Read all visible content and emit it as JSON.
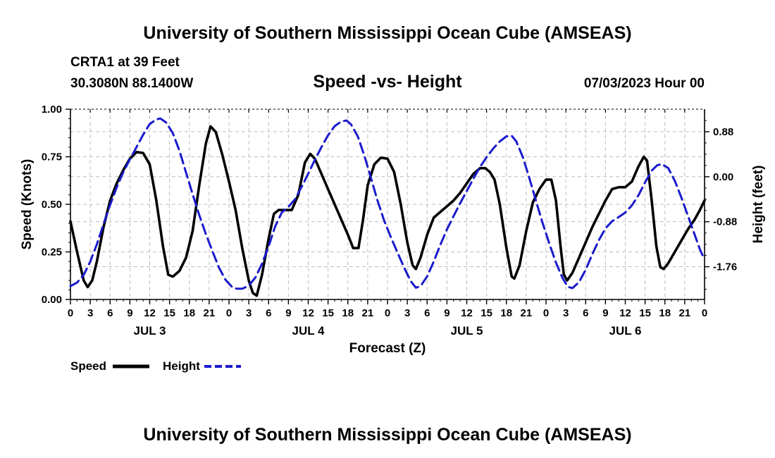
{
  "chart_data": {
    "type": "line",
    "title": "University of Southern Mississippi Ocean Cube (AMSEAS)",
    "footer_title": "University of Southern Mississippi Ocean Cube (AMSEAS)",
    "station": "CRTA1 at 39 Feet",
    "location": "30.3080N  88.1400W",
    "subtitle": "Speed -vs- Height",
    "datetime": "07/03/2023 Hour 00",
    "xlabel": "Forecast (Z)",
    "ylabel_left": "Speed (Knots)",
    "ylabel_right": "Height (feet)",
    "x_range_hours": [
      0,
      96
    ],
    "x_tick_labels": [
      "0",
      "3",
      "6",
      "9",
      "12",
      "15",
      "18",
      "21",
      "0",
      "3",
      "6",
      "9",
      "12",
      "15",
      "18",
      "21",
      "0",
      "3",
      "6",
      "9",
      "12",
      "15",
      "18",
      "21",
      "0",
      "3",
      "6",
      "9",
      "12",
      "15",
      "18",
      "21",
      "0"
    ],
    "day_labels": [
      {
        "label": "JUL 3",
        "hour": 12
      },
      {
        "label": "JUL 4",
        "hour": 36
      },
      {
        "label": "JUL 5",
        "hour": 60
      },
      {
        "label": "JUL 6",
        "hour": 84
      }
    ],
    "y_left": {
      "min": 0,
      "max": 1.0,
      "ticks": [
        "0.00",
        "0.25",
        "0.50",
        "0.75",
        "1.00"
      ],
      "tick_values": [
        0,
        0.25,
        0.5,
        0.75,
        1.0
      ]
    },
    "y_right": {
      "min": -2.4,
      "max": 1.32,
      "ticks": [
        "0.88",
        "0.00",
        "-0.88",
        "-1.76"
      ],
      "tick_values": [
        0.88,
        0.0,
        -0.88,
        -1.76
      ]
    },
    "grid": true,
    "legend": {
      "position": "bottom-left",
      "items": [
        {
          "name": "Speed",
          "color": "#000000",
          "dash": "solid"
        },
        {
          "name": "Height",
          "color": "#1a1acc",
          "dash": "dashed"
        }
      ]
    },
    "series": [
      {
        "name": "Speed",
        "axis": "left",
        "color": "#000000",
        "points": [
          [
            0,
            0.41
          ],
          [
            1,
            0.25
          ],
          [
            2,
            0.1
          ],
          [
            2.6,
            0.065
          ],
          [
            3.3,
            0.1
          ],
          [
            4,
            0.2
          ],
          [
            5,
            0.38
          ],
          [
            6,
            0.52
          ],
          [
            7,
            0.61
          ],
          [
            8,
            0.68
          ],
          [
            9,
            0.74
          ],
          [
            10,
            0.775
          ],
          [
            11,
            0.77
          ],
          [
            12,
            0.71
          ],
          [
            13,
            0.52
          ],
          [
            14,
            0.28
          ],
          [
            14.8,
            0.13
          ],
          [
            15.5,
            0.12
          ],
          [
            16.5,
            0.15
          ],
          [
            17.5,
            0.22
          ],
          [
            18.5,
            0.36
          ],
          [
            19.5,
            0.6
          ],
          [
            20.5,
            0.82
          ],
          [
            21.2,
            0.91
          ],
          [
            22,
            0.88
          ],
          [
            23,
            0.76
          ],
          [
            24,
            0.62
          ],
          [
            25,
            0.47
          ],
          [
            26,
            0.27
          ],
          [
            27,
            0.1
          ],
          [
            27.6,
            0.035
          ],
          [
            28.2,
            0.02
          ],
          [
            29,
            0.13
          ],
          [
            30,
            0.32
          ],
          [
            30.8,
            0.45
          ],
          [
            31.5,
            0.47
          ],
          [
            32.5,
            0.47
          ],
          [
            33.5,
            0.47
          ],
          [
            34.5,
            0.55
          ],
          [
            35.5,
            0.72
          ],
          [
            36.3,
            0.765
          ],
          [
            37,
            0.74
          ],
          [
            38,
            0.66
          ],
          [
            39,
            0.58
          ],
          [
            40,
            0.5
          ],
          [
            41,
            0.42
          ],
          [
            42,
            0.34
          ],
          [
            42.8,
            0.27
          ],
          [
            43.6,
            0.27
          ],
          [
            44.3,
            0.42
          ],
          [
            45,
            0.6
          ],
          [
            46,
            0.71
          ],
          [
            47,
            0.745
          ],
          [
            48,
            0.74
          ],
          [
            49,
            0.67
          ],
          [
            50,
            0.5
          ],
          [
            51,
            0.3
          ],
          [
            51.8,
            0.18
          ],
          [
            52.3,
            0.16
          ],
          [
            53,
            0.22
          ],
          [
            54,
            0.34
          ],
          [
            55,
            0.43
          ],
          [
            56,
            0.46
          ],
          [
            57,
            0.49
          ],
          [
            58,
            0.52
          ],
          [
            59,
            0.56
          ],
          [
            60,
            0.61
          ],
          [
            61,
            0.66
          ],
          [
            62,
            0.69
          ],
          [
            62.8,
            0.69
          ],
          [
            63.5,
            0.67
          ],
          [
            64.2,
            0.63
          ],
          [
            65,
            0.5
          ],
          [
            66,
            0.27
          ],
          [
            66.8,
            0.12
          ],
          [
            67.2,
            0.11
          ],
          [
            68,
            0.18
          ],
          [
            69,
            0.36
          ],
          [
            70,
            0.51
          ],
          [
            71,
            0.58
          ],
          [
            72,
            0.63
          ],
          [
            72.8,
            0.63
          ],
          [
            73.5,
            0.52
          ],
          [
            74.2,
            0.28
          ],
          [
            74.7,
            0.13
          ],
          [
            75.2,
            0.1
          ],
          [
            76,
            0.14
          ],
          [
            77,
            0.22
          ],
          [
            78,
            0.3
          ],
          [
            79,
            0.38
          ],
          [
            80,
            0.45
          ],
          [
            81,
            0.52
          ],
          [
            82,
            0.58
          ],
          [
            83,
            0.59
          ],
          [
            84,
            0.59
          ],
          [
            85,
            0.62
          ],
          [
            86,
            0.7
          ],
          [
            86.8,
            0.75
          ],
          [
            87.3,
            0.73
          ],
          [
            88,
            0.52
          ],
          [
            88.7,
            0.28
          ],
          [
            89.3,
            0.17
          ],
          [
            89.8,
            0.16
          ],
          [
            90.5,
            0.19
          ],
          [
            91.5,
            0.25
          ],
          [
            92.5,
            0.31
          ],
          [
            93.5,
            0.37
          ],
          [
            94.5,
            0.42
          ],
          [
            95.3,
            0.47
          ],
          [
            96,
            0.52
          ]
        ]
      },
      {
        "name": "Height",
        "axis": "right",
        "color": "#1a1acc",
        "points": [
          [
            0,
            -2.14
          ],
          [
            1,
            -2.07
          ],
          [
            2,
            -1.92
          ],
          [
            3,
            -1.66
          ],
          [
            4,
            -1.32
          ],
          [
            5,
            -0.93
          ],
          [
            6,
            -0.55
          ],
          [
            7,
            -0.21
          ],
          [
            8,
            0.09
          ],
          [
            9,
            0.34
          ],
          [
            10,
            0.58
          ],
          [
            11,
            0.82
          ],
          [
            12,
            1.03
          ],
          [
            13,
            1.12
          ],
          [
            13.6,
            1.14
          ],
          [
            14.5,
            1.06
          ],
          [
            15.5,
            0.85
          ],
          [
            16.5,
            0.51
          ],
          [
            17.5,
            0.08
          ],
          [
            18.5,
            -0.34
          ],
          [
            19.5,
            -0.75
          ],
          [
            20.5,
            -1.12
          ],
          [
            21.5,
            -1.46
          ],
          [
            22.5,
            -1.78
          ],
          [
            23.5,
            -2.02
          ],
          [
            24.5,
            -2.16
          ],
          [
            25.2,
            -2.19
          ],
          [
            26,
            -2.19
          ],
          [
            27,
            -2.13
          ],
          [
            28,
            -1.97
          ],
          [
            29,
            -1.7
          ],
          [
            30,
            -1.36
          ],
          [
            31,
            -0.97
          ],
          [
            32,
            -0.7
          ],
          [
            33,
            -0.59
          ],
          [
            34,
            -0.44
          ],
          [
            35,
            -0.2
          ],
          [
            36,
            0.06
          ],
          [
            37,
            0.33
          ],
          [
            38,
            0.58
          ],
          [
            39,
            0.81
          ],
          [
            40,
            0.99
          ],
          [
            41,
            1.08
          ],
          [
            41.8,
            1.1
          ],
          [
            42.5,
            1.02
          ],
          [
            43.5,
            0.79
          ],
          [
            44.5,
            0.41
          ],
          [
            45.5,
            -0.03
          ],
          [
            46.5,
            -0.47
          ],
          [
            47.5,
            -0.86
          ],
          [
            48.5,
            -1.18
          ],
          [
            49.5,
            -1.48
          ],
          [
            50.5,
            -1.77
          ],
          [
            51.5,
            -2.04
          ],
          [
            52.3,
            -2.17
          ],
          [
            53,
            -2.14
          ],
          [
            54,
            -1.95
          ],
          [
            55,
            -1.66
          ],
          [
            56,
            -1.33
          ],
          [
            57,
            -1.03
          ],
          [
            58,
            -0.77
          ],
          [
            59,
            -0.52
          ],
          [
            60,
            -0.28
          ],
          [
            61,
            -0.04
          ],
          [
            62,
            0.19
          ],
          [
            63,
            0.38
          ],
          [
            64,
            0.55
          ],
          [
            65,
            0.69
          ],
          [
            66,
            0.79
          ],
          [
            66.8,
            0.8
          ],
          [
            67.5,
            0.69
          ],
          [
            68.5,
            0.38
          ],
          [
            69.5,
            -0.04
          ],
          [
            70.5,
            -0.48
          ],
          [
            71.5,
            -0.91
          ],
          [
            72.5,
            -1.31
          ],
          [
            73.5,
            -1.68
          ],
          [
            74.5,
            -1.98
          ],
          [
            75.3,
            -2.15
          ],
          [
            76,
            -2.18
          ],
          [
            77,
            -2.06
          ],
          [
            78,
            -1.82
          ],
          [
            79,
            -1.52
          ],
          [
            80,
            -1.24
          ],
          [
            81,
            -1.01
          ],
          [
            82,
            -0.87
          ],
          [
            83,
            -0.79
          ],
          [
            84,
            -0.7
          ],
          [
            85,
            -0.56
          ],
          [
            86,
            -0.36
          ],
          [
            87,
            -0.11
          ],
          [
            88,
            0.12
          ],
          [
            88.8,
            0.22
          ],
          [
            89.5,
            0.25
          ],
          [
            90.5,
            0.17
          ],
          [
            91.5,
            -0.08
          ],
          [
            92.5,
            -0.41
          ],
          [
            93.5,
            -0.77
          ],
          [
            94.5,
            -1.13
          ],
          [
            95.3,
            -1.42
          ],
          [
            96,
            -1.62
          ]
        ]
      }
    ]
  }
}
